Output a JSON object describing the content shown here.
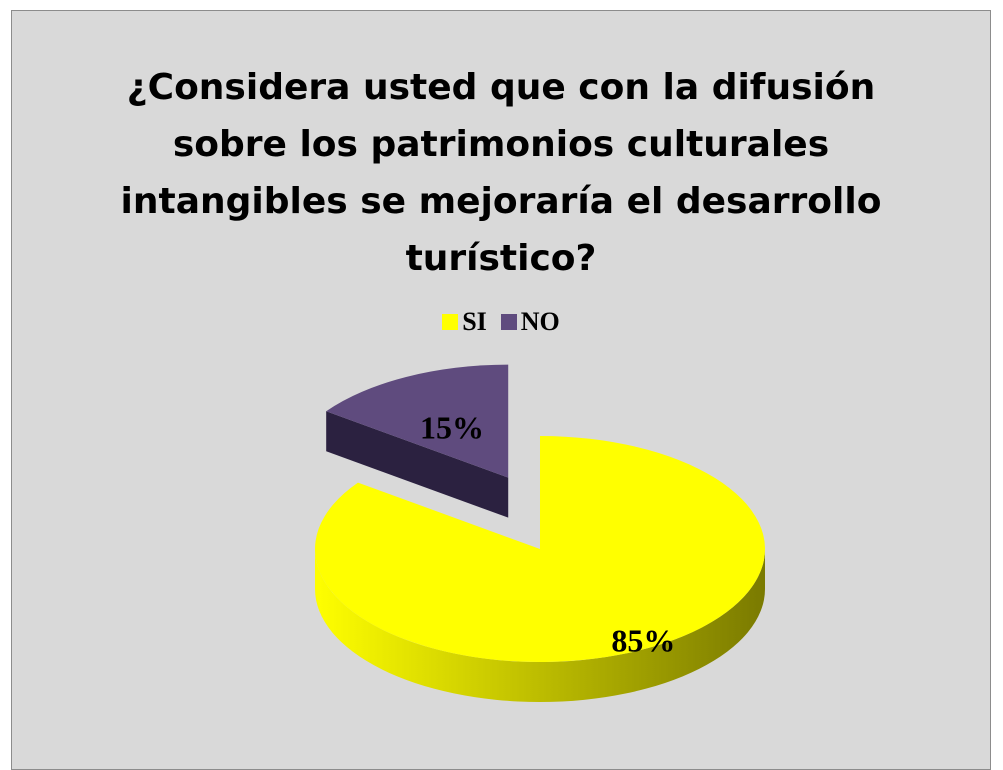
{
  "chart_data": {
    "type": "pie",
    "title": "¿Considera usted que con la difusión\nsobre los patrimonios culturales\nintangibles se mejoraría el desarrollo\nturístico?",
    "series": [
      {
        "name": "SI",
        "value": 85,
        "label": "85%",
        "color": "#ffff00",
        "color_dark": "#7a7a00",
        "exploded": false
      },
      {
        "name": "NO",
        "value": 15,
        "label": "15%",
        "color": "#5f4b7e",
        "color_dark": "#2b2140",
        "exploded": true
      }
    ],
    "legend_position": "top",
    "style": "3d-exploded"
  }
}
